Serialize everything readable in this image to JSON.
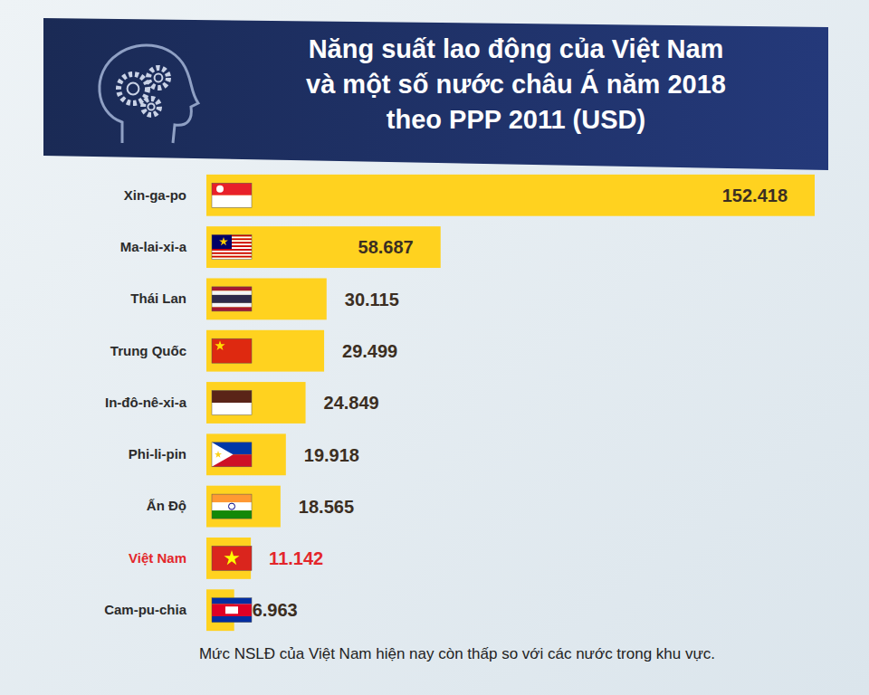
{
  "chart_data": {
    "type": "bar",
    "orientation": "horizontal",
    "title": "Năng suất lao động của Việt Nam\nvà một số nước châu Á năm 2018\ntheo PPP 2011 (USD)",
    "categories": [
      "Xin-ga-po",
      "Ma-lai-xi-a",
      "Thái Lan",
      "Trung Quốc",
      "In-đô-nê-xi-a",
      "Phi-li-pin",
      "Ấn Độ",
      "Việt Nam",
      "Cam-pu-chia"
    ],
    "values": [
      152418,
      58687,
      30115,
      29499,
      24849,
      19918,
      18565,
      11142,
      6963
    ],
    "value_labels": [
      "152.418",
      "58.687",
      "30.115",
      "29.499",
      "24.849",
      "19.918",
      "18.565",
      "11.142",
      "6.963"
    ],
    "color": "#ffd21f",
    "data_labels": true,
    "tick_labels": "y",
    "grid": false,
    "annotations": [
      "Mức NSLĐ của Việt Nam hiện nay còn thấp so với các nước trong khu vực."
    ]
  }
}
